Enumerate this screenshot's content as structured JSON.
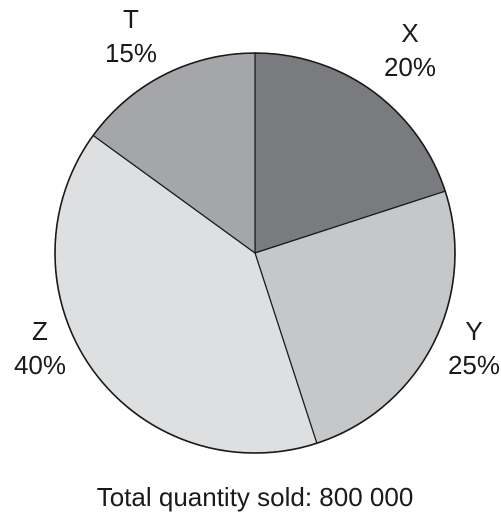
{
  "chart_data": {
    "type": "pie",
    "slices": [
      {
        "label": "X",
        "percent_text": "20%",
        "value": 20,
        "color": "#7a7b7e"
      },
      {
        "label": "Y",
        "percent_text": "25%",
        "value": 25,
        "color": "#c6c7c9"
      },
      {
        "label": "Z",
        "percent_text": "40%",
        "value": 40,
        "color": "#dedfe0"
      },
      {
        "label": "T",
        "percent_text": "15%",
        "value": 15,
        "color": "#a5a6a9"
      }
    ],
    "start_position": "12 o'clock",
    "direction": "clockwise",
    "caption": "Total quantity sold: 800 000"
  }
}
